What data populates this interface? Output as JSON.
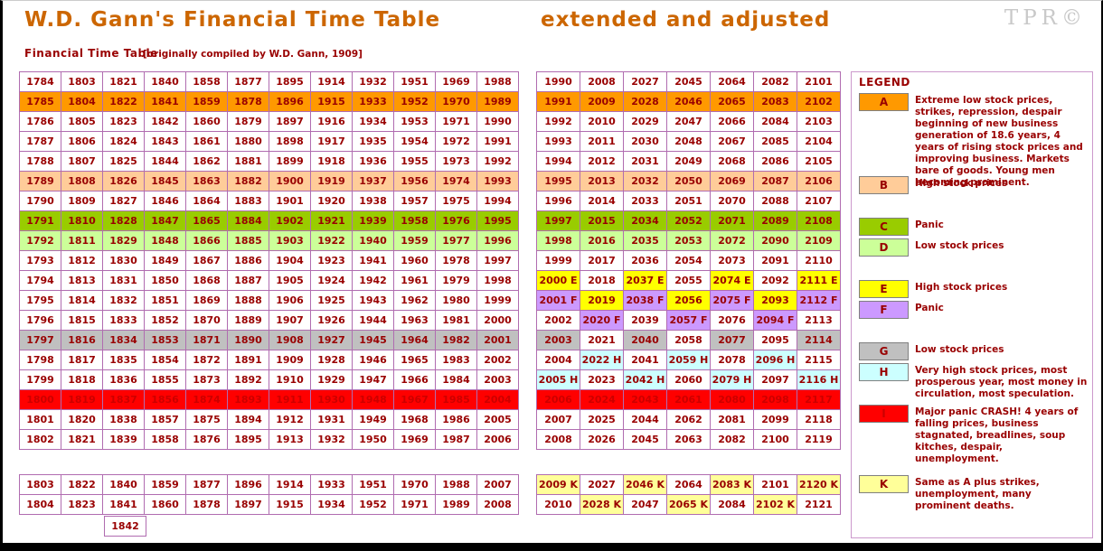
{
  "header": {
    "title": "W.D. Gann's Financial Time Table",
    "title_right": "extended and adjusted",
    "subtitle": "Financial Time Table",
    "subtitle_note": "[originally compiled by W.D. Gann, 1909]",
    "watermark": "TPR©"
  },
  "colors": {
    "title_text": "#CC6600",
    "dark_red_text": "#990000",
    "watermark_gray": "#C9C9C9",
    "grid_border": "#B06CB0",
    "legend_border": "#CC99CC",
    "A": "#FF9900",
    "B": "#FFCC99",
    "C": "#99CC00",
    "D": "#CCFF99",
    "E": "#FFFF00",
    "F": "#CC99FF",
    "G": "#C0C0C0",
    "H": "#CCFFFF",
    "I": "#FF0000",
    "I_text": "#CC0000",
    "K": "#FFFF99"
  },
  "main": {
    "rows": [
      {
        "cls": "",
        "left": [
          "1784",
          "1803",
          "1821",
          "1840",
          "1858",
          "1877",
          "1895",
          "1914",
          "1932",
          "1951",
          "1969",
          "1988"
        ],
        "right": [
          [
            "1990",
            ""
          ],
          [
            "2008",
            ""
          ],
          [
            "2027",
            ""
          ],
          [
            "2045",
            ""
          ],
          [
            "2064",
            ""
          ],
          [
            "2082",
            ""
          ],
          [
            "2101",
            ""
          ]
        ]
      },
      {
        "cls": "A",
        "left": [
          "1785",
          "1804",
          "1822",
          "1841",
          "1859",
          "1878",
          "1896",
          "1915",
          "1933",
          "1952",
          "1970",
          "1989"
        ],
        "right": [
          [
            "1991",
            "A"
          ],
          [
            "2009",
            "A"
          ],
          [
            "2028",
            "A"
          ],
          [
            "2046",
            "A"
          ],
          [
            "2065",
            "A"
          ],
          [
            "2083",
            "A"
          ],
          [
            "2102",
            "A"
          ]
        ]
      },
      {
        "cls": "",
        "left": [
          "1786",
          "1805",
          "1823",
          "1842",
          "1860",
          "1879",
          "1897",
          "1916",
          "1934",
          "1953",
          "1971",
          "1990"
        ],
        "right": [
          [
            "1992",
            ""
          ],
          [
            "2010",
            ""
          ],
          [
            "2029",
            ""
          ],
          [
            "2047",
            ""
          ],
          [
            "2066",
            ""
          ],
          [
            "2084",
            ""
          ],
          [
            "2103",
            ""
          ]
        ]
      },
      {
        "cls": "",
        "left": [
          "1787",
          "1806",
          "1824",
          "1843",
          "1861",
          "1880",
          "1898",
          "1917",
          "1935",
          "1954",
          "1972",
          "1991"
        ],
        "right": [
          [
            "1993",
            ""
          ],
          [
            "2011",
            ""
          ],
          [
            "2030",
            ""
          ],
          [
            "2048",
            ""
          ],
          [
            "2067",
            ""
          ],
          [
            "2085",
            ""
          ],
          [
            "2104",
            ""
          ]
        ]
      },
      {
        "cls": "",
        "left": [
          "1788",
          "1807",
          "1825",
          "1844",
          "1862",
          "1881",
          "1899",
          "1918",
          "1936",
          "1955",
          "1973",
          "1992"
        ],
        "right": [
          [
            "1994",
            ""
          ],
          [
            "2012",
            ""
          ],
          [
            "2031",
            ""
          ],
          [
            "2049",
            ""
          ],
          [
            "2068",
            ""
          ],
          [
            "2086",
            ""
          ],
          [
            "2105",
            ""
          ]
        ]
      },
      {
        "cls": "B",
        "left": [
          "1789",
          "1808",
          "1826",
          "1845",
          "1863",
          "1882",
          "1900",
          "1919",
          "1937",
          "1956",
          "1974",
          "1993"
        ],
        "right": [
          [
            "1995",
            "B"
          ],
          [
            "2013",
            "B"
          ],
          [
            "2032",
            "B"
          ],
          [
            "2050",
            "B"
          ],
          [
            "2069",
            "B"
          ],
          [
            "2087",
            "B"
          ],
          [
            "2106",
            "B"
          ]
        ]
      },
      {
        "cls": "",
        "left": [
          "1790",
          "1809",
          "1827",
          "1846",
          "1864",
          "1883",
          "1901",
          "1920",
          "1938",
          "1957",
          "1975",
          "1994"
        ],
        "right": [
          [
            "1996",
            ""
          ],
          [
            "2014",
            ""
          ],
          [
            "2033",
            ""
          ],
          [
            "2051",
            ""
          ],
          [
            "2070",
            ""
          ],
          [
            "2088",
            ""
          ],
          [
            "2107",
            ""
          ]
        ]
      },
      {
        "cls": "C",
        "left": [
          "1791",
          "1810",
          "1828",
          "1847",
          "1865",
          "1884",
          "1902",
          "1921",
          "1939",
          "1958",
          "1976",
          "1995"
        ],
        "right": [
          [
            "1997",
            "C"
          ],
          [
            "2015",
            "C"
          ],
          [
            "2034",
            "C"
          ],
          [
            "2052",
            "C"
          ],
          [
            "2071",
            "C"
          ],
          [
            "2089",
            "C"
          ],
          [
            "2108",
            "C"
          ]
        ]
      },
      {
        "cls": "D",
        "left": [
          "1792",
          "1811",
          "1829",
          "1848",
          "1866",
          "1885",
          "1903",
          "1922",
          "1940",
          "1959",
          "1977",
          "1996"
        ],
        "right": [
          [
            "1998",
            "D"
          ],
          [
            "2016",
            "D"
          ],
          [
            "2035",
            "D"
          ],
          [
            "2053",
            "D"
          ],
          [
            "2072",
            "D"
          ],
          [
            "2090",
            "D"
          ],
          [
            "2109",
            "D"
          ]
        ]
      },
      {
        "cls": "",
        "left": [
          "1793",
          "1812",
          "1830",
          "1849",
          "1867",
          "1886",
          "1904",
          "1923",
          "1941",
          "1960",
          "1978",
          "1997"
        ],
        "right": [
          [
            "1999",
            ""
          ],
          [
            "2017",
            ""
          ],
          [
            "2036",
            ""
          ],
          [
            "2054",
            ""
          ],
          [
            "2073",
            ""
          ],
          [
            "2091",
            ""
          ],
          [
            "2110",
            ""
          ]
        ]
      },
      {
        "cls": "",
        "left": [
          "1794",
          "1813",
          "1831",
          "1850",
          "1868",
          "1887",
          "1905",
          "1924",
          "1942",
          "1961",
          "1979",
          "1998"
        ],
        "right": [
          [
            "2000 E",
            "E"
          ],
          [
            "2018",
            ""
          ],
          [
            "2037 E",
            "E"
          ],
          [
            "2055",
            ""
          ],
          [
            "2074 E",
            "E"
          ],
          [
            "2092",
            ""
          ],
          [
            "2111 E",
            "E"
          ]
        ]
      },
      {
        "cls": "",
        "left": [
          "1795",
          "1814",
          "1832",
          "1851",
          "1869",
          "1888",
          "1906",
          "1925",
          "1943",
          "1962",
          "1980",
          "1999"
        ],
        "right": [
          [
            "2001 F",
            "F"
          ],
          [
            "2019",
            "E"
          ],
          [
            "2038 F",
            "F"
          ],
          [
            "2056",
            "E"
          ],
          [
            "2075 F",
            "F"
          ],
          [
            "2093",
            "E"
          ],
          [
            "2112 F",
            "F"
          ]
        ]
      },
      {
        "cls": "",
        "left": [
          "1796",
          "1815",
          "1833",
          "1852",
          "1870",
          "1889",
          "1907",
          "1926",
          "1944",
          "1963",
          "1981",
          "2000"
        ],
        "right": [
          [
            "2002",
            ""
          ],
          [
            "2020 F",
            "F"
          ],
          [
            "2039",
            ""
          ],
          [
            "2057 F",
            "F"
          ],
          [
            "2076",
            ""
          ],
          [
            "2094 F",
            "F"
          ],
          [
            "2113",
            ""
          ]
        ]
      },
      {
        "cls": "G",
        "left": [
          "1797",
          "1816",
          "1834",
          "1853",
          "1871",
          "1890",
          "1908",
          "1927",
          "1945",
          "1964",
          "1982",
          "2001"
        ],
        "right": [
          [
            "2003",
            "G"
          ],
          [
            "2021",
            ""
          ],
          [
            "2040",
            "G"
          ],
          [
            "2058",
            ""
          ],
          [
            "2077",
            "G"
          ],
          [
            "2095",
            ""
          ],
          [
            "2114",
            "G"
          ]
        ]
      },
      {
        "cls": "",
        "left": [
          "1798",
          "1817",
          "1835",
          "1854",
          "1872",
          "1891",
          "1909",
          "1928",
          "1946",
          "1965",
          "1983",
          "2002"
        ],
        "right": [
          [
            "2004",
            ""
          ],
          [
            "2022 H",
            "H"
          ],
          [
            "2041",
            ""
          ],
          [
            "2059 H",
            "H"
          ],
          [
            "2078",
            ""
          ],
          [
            "2096 H",
            "H"
          ],
          [
            "2115",
            ""
          ]
        ]
      },
      {
        "cls": "",
        "left": [
          "1799",
          "1818",
          "1836",
          "1855",
          "1873",
          "1892",
          "1910",
          "1929",
          "1947",
          "1966",
          "1984",
          "2003"
        ],
        "right": [
          [
            "2005 H",
            "H"
          ],
          [
            "2023",
            ""
          ],
          [
            "2042 H",
            "H"
          ],
          [
            "2060",
            ""
          ],
          [
            "2079 H",
            "H"
          ],
          [
            "2097",
            ""
          ],
          [
            "2116 H",
            "H"
          ]
        ]
      },
      {
        "cls": "I",
        "left": [
          "1800",
          "1819",
          "1837",
          "1856",
          "1874",
          "1893",
          "1911",
          "1930",
          "1948",
          "1967",
          "1985",
          "2004"
        ],
        "right": [
          [
            "2006",
            "I"
          ],
          [
            "2024",
            "I"
          ],
          [
            "2043",
            "I"
          ],
          [
            "2061",
            "I"
          ],
          [
            "2080",
            "I"
          ],
          [
            "2098",
            "I"
          ],
          [
            "2117",
            "I"
          ]
        ]
      },
      {
        "cls": "",
        "left": [
          "1801",
          "1820",
          "1838",
          "1857",
          "1875",
          "1894",
          "1912",
          "1931",
          "1949",
          "1968",
          "1986",
          "2005"
        ],
        "right": [
          [
            "2007",
            ""
          ],
          [
            "2025",
            ""
          ],
          [
            "2044",
            ""
          ],
          [
            "2062",
            ""
          ],
          [
            "2081",
            ""
          ],
          [
            "2099",
            ""
          ],
          [
            "2118",
            ""
          ]
        ]
      },
      {
        "cls": "",
        "left": [
          "1802",
          "1821",
          "1839",
          "1858",
          "1876",
          "1895",
          "1913",
          "1932",
          "1950",
          "1969",
          "1987",
          "2006"
        ],
        "right": [
          [
            "2008",
            ""
          ],
          [
            "2026",
            ""
          ],
          [
            "2045",
            ""
          ],
          [
            "2063",
            ""
          ],
          [
            "2082",
            ""
          ],
          [
            "2100",
            ""
          ],
          [
            "2119",
            ""
          ]
        ]
      }
    ]
  },
  "bottom": {
    "rows": [
      {
        "cls": "",
        "left": [
          "1803",
          "1822",
          "1840",
          "1859",
          "1877",
          "1896",
          "1914",
          "1933",
          "1951",
          "1970",
          "1988",
          "2007"
        ],
        "right": [
          [
            "2009 K",
            "K"
          ],
          [
            "2027",
            ""
          ],
          [
            "2046 K",
            "K"
          ],
          [
            "2064",
            ""
          ],
          [
            "2083 K",
            "K"
          ],
          [
            "2101",
            ""
          ],
          [
            "2120 K",
            "K"
          ]
        ]
      },
      {
        "cls": "",
        "left": [
          "1804",
          "1823",
          "1841",
          "1860",
          "1878",
          "1897",
          "1915",
          "1934",
          "1952",
          "1971",
          "1989",
          "2008"
        ],
        "right": [
          [
            "2010",
            ""
          ],
          [
            "2028 K",
            "K"
          ],
          [
            "2047",
            ""
          ],
          [
            "2065 K",
            "K"
          ],
          [
            "2084",
            ""
          ],
          [
            "2102 K",
            "K"
          ],
          [
            "2121",
            ""
          ]
        ]
      }
    ]
  },
  "overflow_cell": {
    "text": "1842",
    "col": 2
  },
  "legend": {
    "header": "LEGEND",
    "items": [
      {
        "letter": "A",
        "text": "Extreme low stock prices, strikes, repression, despair beginning of new business generation of 18.6 years, 4 years of rising stock prices and improving business. Markets bare of goods. Young men becoming prominent."
      },
      {
        "letter": "B",
        "text": "High stock prices"
      },
      {
        "letter": "C",
        "text": "Panic"
      },
      {
        "letter": "D",
        "text": "Low stock prices"
      },
      {
        "letter": "E",
        "text": "High stock prices"
      },
      {
        "letter": "F",
        "text": "Panic"
      },
      {
        "letter": "G",
        "text": "Low stock prices"
      },
      {
        "letter": "H",
        "text": "Very high stock prices, most prosperous year, most money in circulation, most speculation."
      },
      {
        "letter": "I",
        "text": "Major panic CRASH! 4 years of falling prices, business stagnated, breadlines, soup kitches, despair, unemployment."
      },
      {
        "letter": "K",
        "text": "Same as A plus strikes, unemployment, many prominent deaths."
      }
    ]
  }
}
